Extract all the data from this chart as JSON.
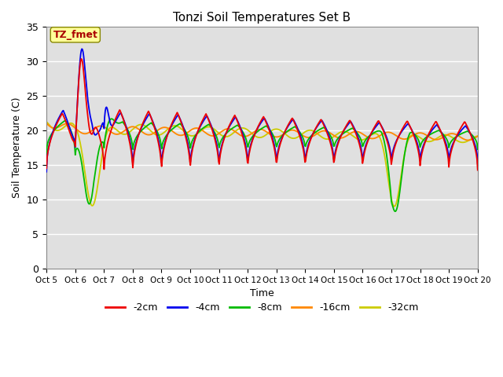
{
  "title": "Tonzi Soil Temperatures Set B",
  "xlabel": "Time",
  "ylabel": "Soil Temperature (C)",
  "ylim": [
    0,
    35
  ],
  "xlim": [
    0,
    15
  ],
  "x_tick_labels": [
    "Oct 5",
    "Oct 6",
    "Oct 7",
    "Oct 8",
    "Oct 9",
    "Oct 10",
    "Oct 11",
    "Oct 12",
    "Oct 13",
    "Oct 14",
    "Oct 15",
    "Oct 16",
    "Oct 17",
    "Oct 18",
    "Oct 19",
    "Oct 20"
  ],
  "annotation_text": "TZ_fmet",
  "annotation_color": "#aa0000",
  "annotation_bg": "#ffff99",
  "bg_color": "#e0e0e0",
  "colors": {
    "-2cm": "#ee0000",
    "-4cm": "#0000ee",
    "-8cm": "#00bb00",
    "-16cm": "#ff8800",
    "-32cm": "#cccc00"
  },
  "legend_labels": [
    "-2cm",
    "-4cm",
    "-8cm",
    "-16cm",
    "-32cm"
  ]
}
